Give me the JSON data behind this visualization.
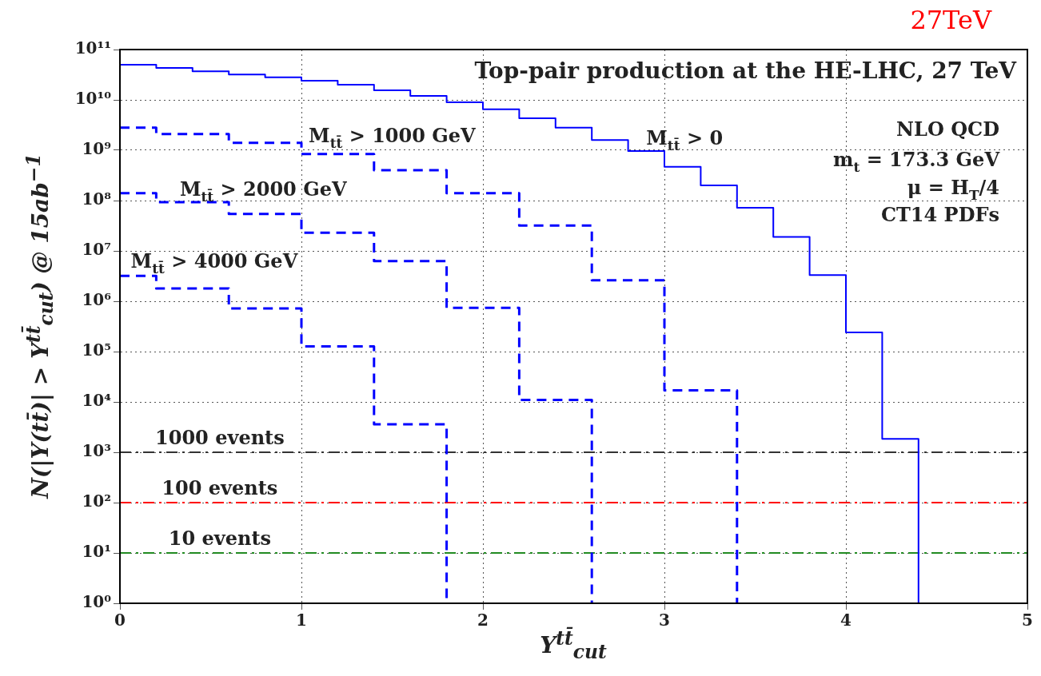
{
  "chart_data": {
    "type": "step",
    "title": "Top-pair production at the HE-LHC, 27 TeV",
    "xlabel": "Y$^{tt̄}$$_{cut}$",
    "ylabel": "N(|Y(tt̄)| > Y$^{tt̄}$$_{cut}$) @ 15ab$^{−1}$",
    "series": [
      {
        "name": "M$_{tt̄}$ > 0",
        "color": "#0000ff",
        "line_style": "solid",
        "x": [
          0,
          0.2,
          0.4,
          0.6,
          0.8,
          1.0,
          1.2,
          1.4,
          1.6,
          1.8,
          2.0,
          2.2,
          2.4,
          2.6,
          2.8,
          3.0,
          3.2,
          3.4,
          3.6,
          3.8,
          4.0,
          4.2,
          4.4
        ],
        "values": [
          50000000000.0,
          43000000000.0,
          37000000000.0,
          32000000000.0,
          28000000000.0,
          24000000000.0,
          20000000000.0,
          15500000000.0,
          12000000000.0,
          9000000000.0,
          6500000000.0,
          4300000000.0,
          2800000000.0,
          1600000000.0,
          960000000.0,
          470000000.0,
          200000000.0,
          72000000.0,
          19000000.0,
          3300000.0,
          240000.0,
          1850.0,
          1
        ]
      },
      {
        "name": "M$_{tt̄}$ > 1000 GeV",
        "color": "#0000ff",
        "line_style": "dashed",
        "x": [
          0,
          0.2,
          0.6,
          1.0,
          1.4,
          1.8,
          2.2,
          2.6,
          3.0,
          3.4
        ],
        "values": [
          2800000000.0,
          2100000000.0,
          1400000000.0,
          840000000.0,
          400000000.0,
          140000000.0,
          32000000.0,
          2600000.0,
          17000.0,
          1
        ]
      },
      {
        "name": "M$_{tt̄}$ > 2000 GeV",
        "color": "#0000ff",
        "line_style": "dashed",
        "x": [
          0,
          0.2,
          0.6,
          1.0,
          1.4,
          1.8,
          2.2,
          2.6
        ],
        "values": [
          140000000.0,
          93000000.0,
          54000000.0,
          23000000.0,
          6300000.0,
          740000.0,
          11000.0,
          1
        ]
      },
      {
        "name": "M$_{tt̄}$ > 4000 GeV",
        "color": "#0000ff",
        "line_style": "dashed",
        "x": [
          0,
          0.2,
          0.6,
          1.0,
          1.4,
          1.8
        ],
        "values": [
          3200000.0,
          1800000.0,
          720000.0,
          127000.0,
          3600.0,
          1
        ]
      }
    ],
    "ref_lines": [
      {
        "axis": "y",
        "value": 1000,
        "label": "1000 events",
        "color": "#333333",
        "line_style": "dashed"
      },
      {
        "axis": "y",
        "value": 100,
        "label": "100 events",
        "color": "#ff0000",
        "line_style": "dashed"
      },
      {
        "axis": "y",
        "value": 10,
        "label": "10 events",
        "color": "#228b22",
        "line_style": "dashed"
      }
    ],
    "annotations": [
      "NLO QCD",
      "m$_{t}$ = 173.3 GeV",
      "μ = H$_{T}$/4",
      "CT14 PDFs",
      "27TeV"
    ],
    "xlim": [
      0,
      5
    ],
    "xticks": [
      0,
      1,
      2,
      3,
      4,
      5
    ],
    "ylim": [
      1,
      100000000000.0
    ],
    "yticks": [
      {
        "value": 1,
        "label": "10⁰"
      },
      {
        "value": 10,
        "label": "10¹"
      },
      {
        "value": 100,
        "label": "10²"
      },
      {
        "value": 1000,
        "label": "10³"
      },
      {
        "value": 10000,
        "label": "10⁴"
      },
      {
        "value": 100000,
        "label": "10⁵"
      },
      {
        "value": 1000000,
        "label": "10⁶"
      },
      {
        "value": 10000000,
        "label": "10⁷"
      },
      {
        "value": 100000000,
        "label": "10⁸"
      },
      {
        "value": 1000000000,
        "label": "10⁹"
      },
      {
        "value": 10000000000,
        "label": "10¹⁰"
      },
      {
        "value": 100000000000,
        "label": "10¹¹"
      }
    ],
    "log": "y",
    "grid": true,
    "legend": false,
    "marker": "none"
  }
}
